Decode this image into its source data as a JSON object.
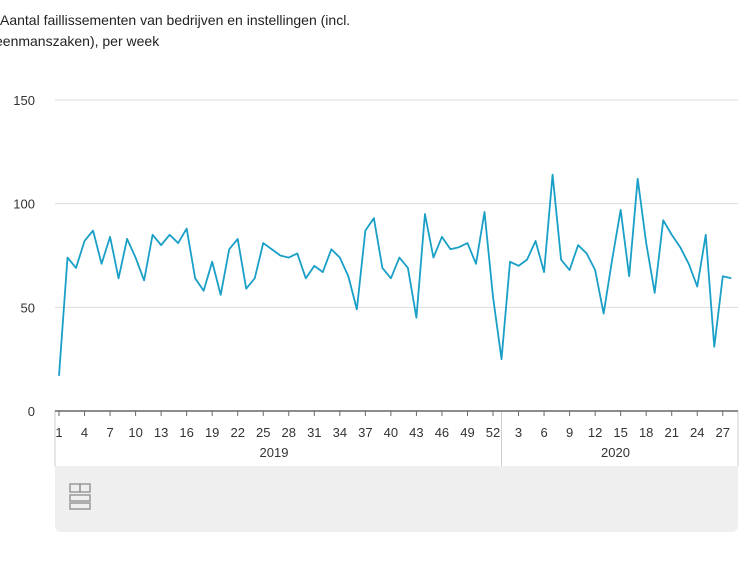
{
  "chart_data": {
    "type": "line",
    "title_line1": "Aantal faillissementen van bedrijven en instellingen (incl.",
    "title_line2": "eenmanszaken), per week",
    "ylim": [
      0,
      150
    ],
    "yticks": [
      0,
      50,
      100,
      150
    ],
    "grid": true,
    "line_color": "#1a9fc7",
    "years": [
      {
        "label": "2019",
        "weeks": 52
      },
      {
        "label": "2020",
        "weeks": 28
      }
    ],
    "xticks_2019": [
      "1",
      "4",
      "7",
      "10",
      "13",
      "16",
      "19",
      "22",
      "25",
      "28",
      "31",
      "34",
      "37",
      "40",
      "43",
      "46",
      "49",
      "52"
    ],
    "xticks_2020": [
      "3",
      "6",
      "9",
      "12",
      "15",
      "18",
      "21",
      "24",
      "27"
    ],
    "values_2019": [
      17,
      74,
      69,
      82,
      87,
      71,
      84,
      64,
      83,
      74,
      63,
      85,
      80,
      85,
      81,
      88,
      64,
      58,
      72,
      56,
      78,
      83,
      59,
      64,
      81,
      78,
      75,
      74,
      76,
      64,
      70,
      67,
      78,
      74,
      65,
      49,
      87,
      93,
      69,
      64,
      74,
      69,
      45,
      95,
      74,
      84,
      78,
      79,
      81,
      71,
      96,
      55
    ],
    "values_2020": [
      25,
      72,
      70,
      73,
      82,
      67,
      114,
      73,
      68,
      80,
      76,
      68,
      47,
      73,
      97,
      65,
      112,
      81,
      57,
      92,
      85,
      79,
      71,
      60,
      85,
      31,
      65,
      64
    ]
  }
}
